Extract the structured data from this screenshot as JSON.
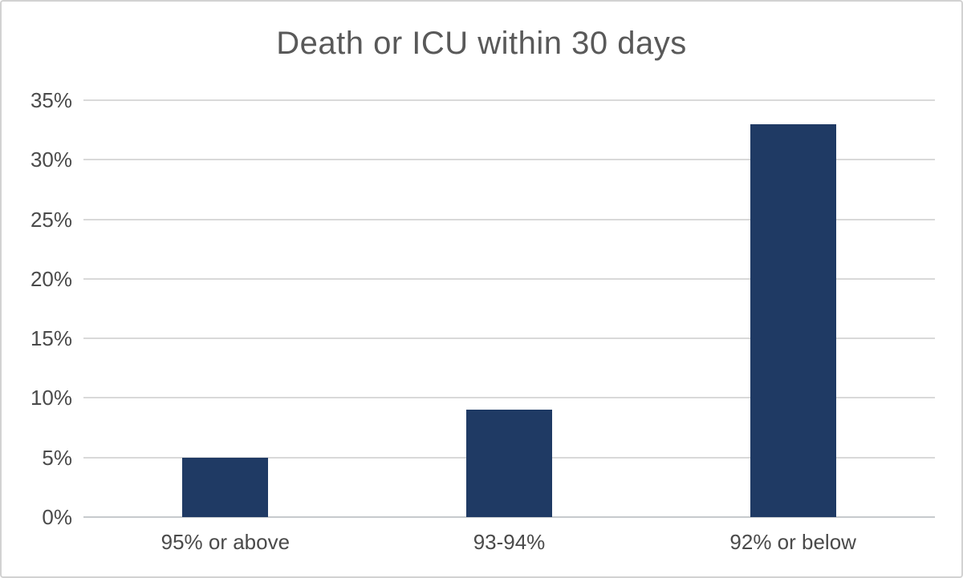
{
  "chart_data": {
    "type": "bar",
    "title": "Death or ICU within 30 days",
    "categories": [
      "95% or above",
      "93-94%",
      "92% or below"
    ],
    "values": [
      5,
      9,
      33
    ],
    "value_unit": "%",
    "xlabel": "",
    "ylabel": "",
    "ylim": [
      0,
      35
    ],
    "ytick_step": 5,
    "ytick_labels": [
      "0%",
      "5%",
      "10%",
      "15%",
      "20%",
      "25%",
      "30%",
      "35%"
    ],
    "grid": true,
    "legend": false,
    "colors": {
      "bar": "#1f3a64",
      "gridline": "#d9d9d9",
      "axis_line": "#c7cacd",
      "title_text": "#595959",
      "tick_text": "#4a4a4a",
      "frame_border": "#d2d2d2",
      "background": "#ffffff"
    }
  }
}
